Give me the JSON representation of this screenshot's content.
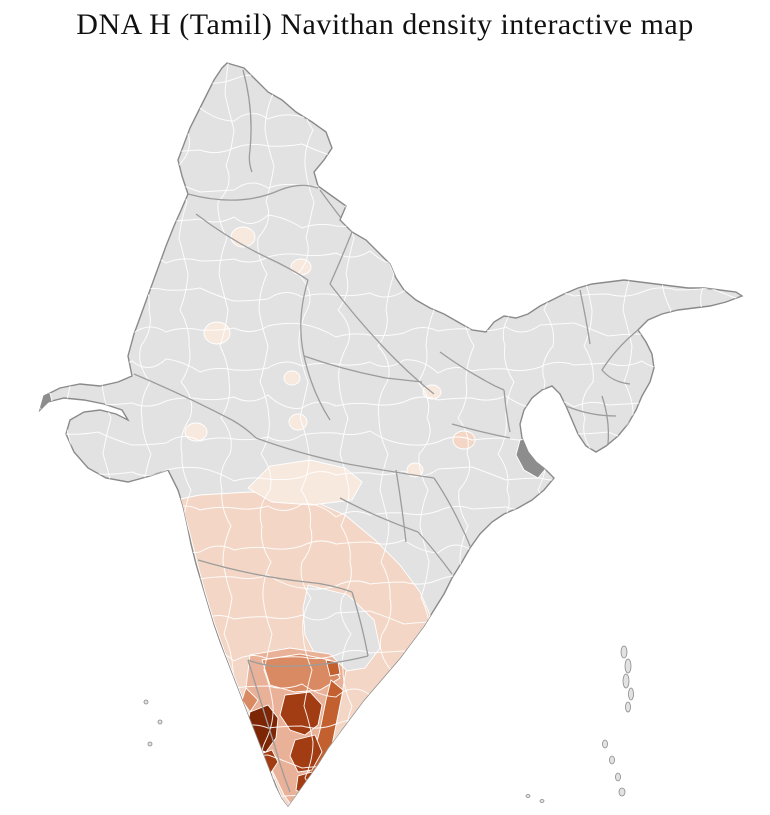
{
  "title": "DNA H (Tamil) Navithan density interactive map",
  "palette": {
    "background": "#ffffff",
    "base": "#e2e2e2",
    "outline": "#8a8a8a",
    "stateBorder": "#9c9c9c",
    "districtBorder": "#ffffff",
    "nodata": "#8d8d8d",
    "d1": "#f8e9df",
    "d2": "#f3d6c5",
    "d3": "#e9b197",
    "d4": "#da8a62",
    "d5": "#c2602f",
    "d6": "#a23c12",
    "d7": "#7d2606"
  }
}
